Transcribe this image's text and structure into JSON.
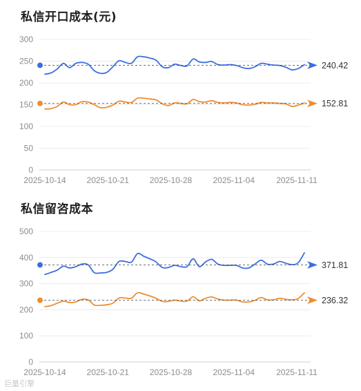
{
  "charts": [
    {
      "title": "私信开口成本(元)"
    },
    {
      "title": "私信留咨成本"
    }
  ],
  "watermark": "巨量引擎",
  "chart_data": [
    {
      "type": "line",
      "title": "私信开口成本(元)",
      "x_ticks": [
        "2025-10-14",
        "2025-10-21",
        "2025-10-28",
        "2025-11-04",
        "2025-11-11"
      ],
      "y_ticks": [
        0,
        50,
        100,
        150,
        200,
        250,
        300
      ],
      "ylim": [
        0,
        300
      ],
      "grid": true,
      "series": [
        {
          "color": "#3b6de0",
          "reference_value": 240.42,
          "end_label": "240.42",
          "values": [
            220,
            223,
            232,
            245,
            235,
            245,
            247,
            243,
            228,
            222,
            224,
            237,
            251,
            247,
            245,
            260,
            260,
            257,
            252,
            237,
            235,
            243,
            240,
            239,
            255,
            248,
            247,
            249,
            242,
            241,
            242,
            240,
            235,
            233,
            237,
            245,
            243,
            241,
            240,
            236,
            230,
            233,
            242
          ]
        },
        {
          "color": "#f08c2e",
          "reference_value": 152.81,
          "end_label": "152.81",
          "values": [
            140,
            141,
            146,
            156,
            150,
            150,
            157,
            156,
            150,
            143,
            144,
            149,
            158,
            156,
            155,
            165,
            165,
            163,
            161,
            152,
            148,
            154,
            153,
            152,
            162,
            157,
            156,
            159,
            155,
            154,
            155,
            154,
            150,
            149,
            151,
            155,
            154,
            154,
            153,
            152,
            146,
            149,
            154
          ]
        }
      ]
    },
    {
      "type": "line",
      "title": "私信留咨成本",
      "x_ticks": [
        "2025-10-14",
        "2025-10-21",
        "2025-10-28",
        "2025-11-04",
        "2025-11-11"
      ],
      "y_ticks": [
        0,
        100,
        200,
        300,
        400,
        500
      ],
      "ylim": [
        0,
        500
      ],
      "grid": true,
      "series": [
        {
          "color": "#3b6de0",
          "reference_value": 371.81,
          "end_label": "371.81",
          "values": [
            335,
            343,
            352,
            367,
            360,
            365,
            375,
            372,
            342,
            341,
            343,
            355,
            385,
            385,
            382,
            415,
            405,
            395,
            383,
            362,
            362,
            370,
            365,
            365,
            395,
            365,
            383,
            393,
            375,
            370,
            370,
            370,
            360,
            360,
            375,
            390,
            375,
            375,
            385,
            378,
            373,
            380,
            418
          ]
        },
        {
          "color": "#f08c2e",
          "reference_value": 236.32,
          "end_label": "236.32",
          "values": [
            212,
            216,
            225,
            233,
            228,
            230,
            240,
            238,
            218,
            217,
            219,
            225,
            245,
            245,
            244,
            265,
            260,
            253,
            244,
            232,
            232,
            237,
            233,
            233,
            250,
            234,
            244,
            249,
            241,
            237,
            237,
            237,
            230,
            230,
            236,
            247,
            238,
            238,
            244,
            240,
            238,
            243,
            265
          ]
        }
      ]
    }
  ]
}
